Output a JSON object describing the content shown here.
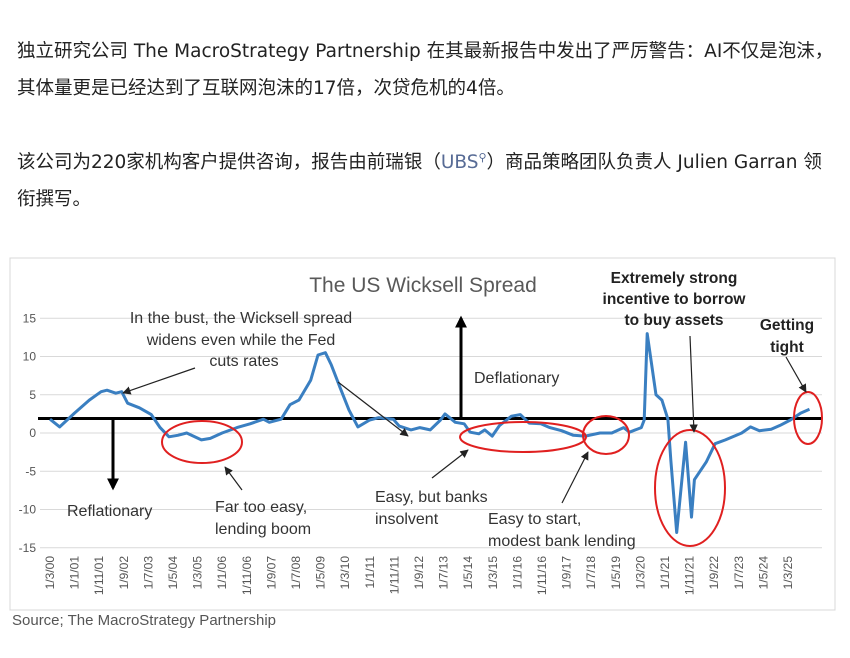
{
  "article": {
    "para1": "独立研究公司 The MacroStrategy Partnership 在其最新报告中发出了严厉警告：AI不仅是泡沫，其体量更是已经达到了互联网泡沫的17倍，次贷危机的4倍。",
    "para2_before": "该公司为220家机构客户提供咨询，报告由前瑞银（",
    "para2_link": "UBS",
    "para2_after": "）商品策略团队负责人 Julien Garran 领衔撰写。",
    "link_icon": "search-icon"
  },
  "chart_data": {
    "type": "line",
    "title": "The US Wicksell Spread",
    "xlabel": "",
    "ylabel": "",
    "ylim": [
      -15,
      15
    ],
    "yticks": [
      "15",
      "10",
      "5",
      "0",
      "-5",
      "-10",
      "-15"
    ],
    "ytick_values": [
      15,
      10,
      5,
      0,
      -5,
      -10,
      -15
    ],
    "xlim": [
      2000.0,
      2026.3
    ],
    "xtick_labels": [
      "1/3/00",
      "1/1/01",
      "1/11/01",
      "1/9/02",
      "1/7/03",
      "1/5/04",
      "1/3/05",
      "1/1/06",
      "1/11/06",
      "1/9/07",
      "1/7/08",
      "1/5/09",
      "1/3/10",
      "1/1/11",
      "1/11/11",
      "1/9/12",
      "1/7/13",
      "1/5/14",
      "1/3/15",
      "1/1/16",
      "1/11/16",
      "1/9/17",
      "1/7/18",
      "1/5/19",
      "1/3/20",
      "1/1/21",
      "1/11/21",
      "1/9/22",
      "1/7/23",
      "1/5/24",
      "1/3/25"
    ],
    "threshold": 1.9,
    "grid": true,
    "line_color": "#3a7fc1",
    "series": [
      {
        "name": "US Wicksell Spread",
        "x": [
          2000.17,
          2000.5,
          2001.0,
          2001.5,
          2001.9,
          2002.1,
          2002.4,
          2002.6,
          2002.8,
          2003.2,
          2003.6,
          2003.9,
          2004.2,
          2004.5,
          2004.8,
          2005.3,
          2005.6,
          2006.0,
          2006.5,
          2006.95,
          2007.4,
          2007.6,
          2008.0,
          2008.3,
          2008.6,
          2009.0,
          2009.25,
          2009.5,
          2009.7,
          2010.0,
          2010.3,
          2010.6,
          2011.0,
          2011.3,
          2011.8,
          2012.0,
          2012.4,
          2012.7,
          2013.05,
          2013.4,
          2013.55,
          2013.9,
          2014.2,
          2014.4,
          2014.7,
          2014.9,
          2015.15,
          2015.4,
          2015.8,
          2016.1,
          2016.4,
          2016.8,
          2017.1,
          2017.5,
          2017.9,
          2018.3,
          2018.8,
          2019.2,
          2019.6,
          2019.8,
          2020.2,
          2020.3,
          2020.4,
          2020.7,
          2020.9,
          2021.1,
          2021.2,
          2021.4,
          2021.7,
          2021.9,
          2022.0,
          2022.4,
          2022.7,
          2023.05,
          2023.6,
          2023.9,
          2024.2,
          2024.6,
          2024.9,
          2025.25,
          2025.6,
          2025.9
        ],
        "y": [
          1.8,
          0.8,
          2.6,
          4.3,
          5.4,
          5.6,
          5.2,
          5.4,
          3.9,
          3.3,
          2.4,
          0.7,
          -0.5,
          -0.3,
          0.0,
          -0.9,
          -0.7,
          0.0,
          0.7,
          1.2,
          1.8,
          1.4,
          1.8,
          3.7,
          4.3,
          6.9,
          10.2,
          10.5,
          8.9,
          5.9,
          3.0,
          0.8,
          1.7,
          2.0,
          1.8,
          0.9,
          0.4,
          0.7,
          0.4,
          1.7,
          2.5,
          1.4,
          1.2,
          0.1,
          -0.1,
          0.4,
          -0.4,
          1.0,
          2.2,
          2.4,
          1.3,
          1.2,
          0.7,
          0.3,
          -0.3,
          -0.4,
          0.0,
          0.0,
          0.7,
          0.1,
          0.7,
          1.7,
          13.0,
          5.0,
          4.3,
          1.8,
          -3.5,
          -13.0,
          -1.2,
          -11.0,
          -6.1,
          -3.8,
          -1.4,
          -0.9,
          0.0,
          0.8,
          0.3,
          0.5,
          1.0,
          1.7,
          2.6,
          3.1
        ]
      }
    ],
    "annotations": {
      "bust": [
        "In the bust, the Wicksell spread",
        "widens even while the Fed",
        "cuts rates"
      ],
      "deflationary": "Deflationary",
      "reflationary": "Reflationary",
      "far_too_easy": [
        "Far too easy,",
        "lending boom"
      ],
      "easy_insolvent": [
        "Easy, but banks",
        "insolvent"
      ],
      "easy_start": [
        "Easy to start,",
        "modest bank lending"
      ],
      "extremely_strong": [
        "Extremely strong",
        "incentive to borrow",
        "to buy assets"
      ],
      "getting_tight": [
        "Getting",
        "tight"
      ]
    },
    "source": "Source; The MacroStrategy Partnership"
  }
}
